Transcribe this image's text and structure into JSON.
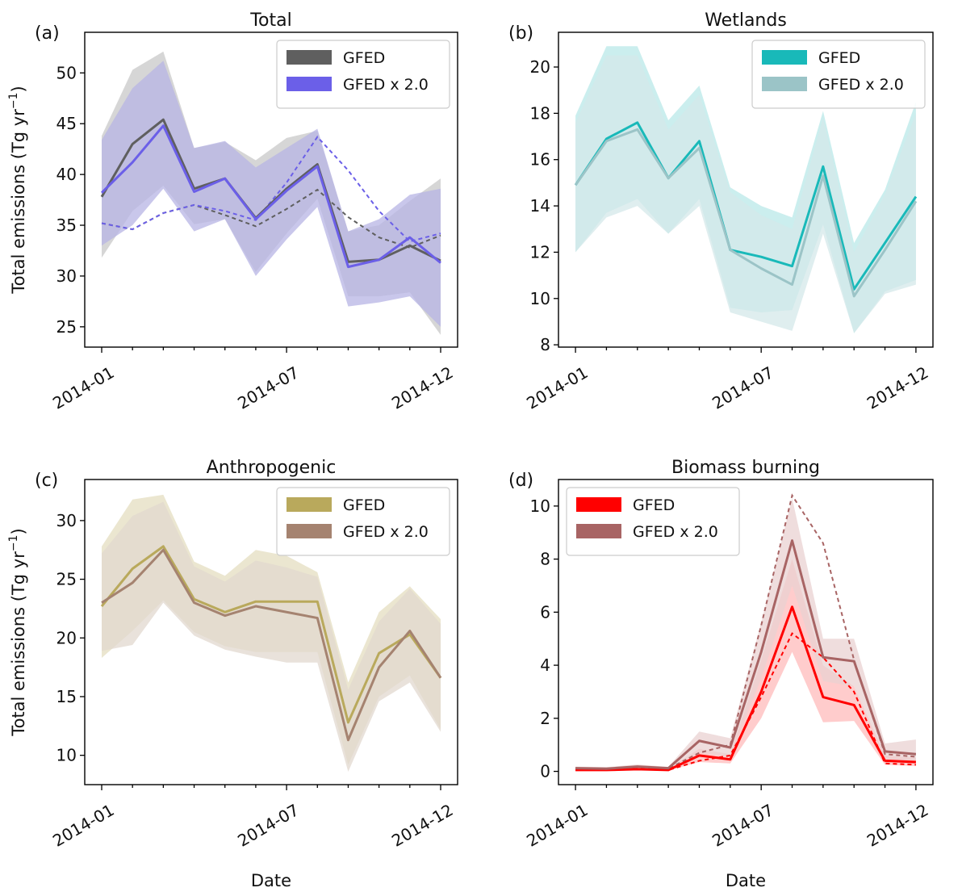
{
  "xlabel": "Date",
  "ylabel_prefix": "Total emissions (",
  "ylabel_unit": "Tg yr",
  "ylabel_exp": "−1",
  "ylabel_suffix": ")",
  "chart_data": [
    {
      "type": "line",
      "letter": "(a)",
      "title": "Total",
      "ylim": [
        23,
        54
      ],
      "yticks": [
        25,
        30,
        35,
        40,
        45,
        50
      ],
      "x_months": [
        "2014-01",
        "2014-02",
        "2014-03",
        "2014-04",
        "2014-05",
        "2014-06",
        "2014-07",
        "2014-08",
        "2014-09",
        "2014-10",
        "2014-11",
        "2014-12"
      ],
      "xtick_labels": [
        "2014-01",
        "2014-07",
        "2014-12"
      ],
      "legend_position": "upper right",
      "series": [
        {
          "name": "GFED",
          "color": "#5f5f5f",
          "values": [
            37.8,
            43.0,
            45.4,
            38.6,
            39.6,
            35.7,
            38.6,
            41.0,
            31.4,
            31.6,
            33.0,
            31.5
          ],
          "band_low": [
            31.8,
            36.4,
            38.9,
            35.1,
            35.6,
            30.4,
            34.2,
            37.6,
            28.0,
            28.0,
            28.4,
            24.2
          ],
          "band_high": [
            43.8,
            50.3,
            52.1,
            42.6,
            43.2,
            41.4,
            43.6,
            44.3,
            34.4,
            35.0,
            37.4,
            39.6
          ],
          "band_color": "#cfcfcf",
          "dashed": [
            35.2,
            34.6,
            36.2,
            37.0,
            36.0,
            34.9,
            36.6,
            38.5,
            35.8,
            33.8,
            32.8,
            34.0
          ]
        },
        {
          "name": "GFED x 2.0",
          "color": "#6b5fe8",
          "values": [
            38.2,
            41.2,
            44.8,
            38.3,
            39.6,
            35.6,
            38.4,
            40.8,
            30.9,
            31.6,
            33.8,
            31.3
          ],
          "band_low": [
            33.0,
            35.0,
            38.6,
            34.4,
            35.6,
            30.0,
            33.6,
            36.8,
            27.0,
            27.4,
            28.0,
            25.0
          ],
          "band_high": [
            43.4,
            48.5,
            51.2,
            42.6,
            43.3,
            40.7,
            42.6,
            44.5,
            34.4,
            35.6,
            38.0,
            38.6
          ],
          "band_color": "#b7b4e4",
          "dashed": [
            35.2,
            34.6,
            36.2,
            37.0,
            36.4,
            35.5,
            39.2,
            43.7,
            40.4,
            36.4,
            33.4,
            34.2
          ]
        }
      ]
    },
    {
      "type": "line",
      "letter": "(b)",
      "title": "Wetlands",
      "ylim": [
        7.9,
        21.5
      ],
      "yticks": [
        8,
        10,
        12,
        14,
        16,
        18,
        20
      ],
      "x_months": [
        "2014-01",
        "2014-02",
        "2014-03",
        "2014-04",
        "2014-05",
        "2014-06",
        "2014-07",
        "2014-08",
        "2014-09",
        "2014-10",
        "2014-11",
        "2014-12"
      ],
      "xtick_labels": [
        "2014-01",
        "2014-07",
        "2014-12"
      ],
      "legend_position": "upper right",
      "series": [
        {
          "name": "GFED",
          "color": "#19b9b9",
          "values": [
            14.9,
            16.9,
            17.6,
            15.2,
            16.8,
            12.1,
            11.8,
            11.4,
            15.7,
            10.4,
            12.4,
            14.4
          ],
          "band_low": [
            12.0,
            13.7,
            14.3,
            12.8,
            14.3,
            9.6,
            9.4,
            9.5,
            13.2,
            8.5,
            10.3,
            10.8
          ],
          "band_high": [
            17.9,
            20.9,
            20.9,
            17.7,
            19.2,
            14.8,
            14.0,
            13.5,
            18.1,
            12.4,
            14.7,
            18.5
          ],
          "band_color": "#c2ebeb",
          "dashed": null
        },
        {
          "name": "GFED x 2.0",
          "color": "#9bc4c7",
          "values": [
            14.9,
            16.8,
            17.3,
            15.2,
            16.5,
            12.1,
            11.3,
            10.6,
            15.3,
            10.1,
            12.1,
            14.2
          ],
          "band_low": [
            12.0,
            13.5,
            14.0,
            12.8,
            14.0,
            9.4,
            9.0,
            8.6,
            12.8,
            8.5,
            10.2,
            10.6
          ],
          "band_high": [
            17.6,
            20.5,
            20.5,
            17.3,
            18.8,
            14.6,
            13.6,
            13.0,
            17.8,
            12.0,
            14.5,
            18.0
          ],
          "band_color": "#d4e8ea",
          "dashed": null
        }
      ]
    },
    {
      "type": "line",
      "letter": "(c)",
      "title": "Anthropogenic",
      "ylim": [
        7.5,
        33.5
      ],
      "yticks": [
        10,
        15,
        20,
        25,
        30
      ],
      "x_months": [
        "2014-01",
        "2014-02",
        "2014-03",
        "2014-04",
        "2014-05",
        "2014-06",
        "2014-07",
        "2014-08",
        "2014-09",
        "2014-10",
        "2014-11",
        "2014-12"
      ],
      "xtick_labels": [
        "2014-01",
        "2014-07",
        "2014-12"
      ],
      "legend_position": "upper right",
      "series": [
        {
          "name": "GFED",
          "color": "#b9a95c",
          "values": [
            22.7,
            25.9,
            27.8,
            23.3,
            22.2,
            23.1,
            23.1,
            23.1,
            12.8,
            18.7,
            20.3,
            16.6
          ],
          "band_low": [
            18.3,
            20.6,
            23.2,
            20.5,
            19.3,
            18.8,
            18.8,
            18.8,
            9.2,
            15.0,
            16.8,
            12.2
          ],
          "band_high": [
            27.8,
            31.8,
            32.2,
            26.5,
            25.3,
            27.5,
            27.0,
            25.6,
            16.2,
            22.2,
            24.4,
            21.6
          ],
          "band_color": "#e8e2c8",
          "dashed": null
        },
        {
          "name": "GFED x 2.0",
          "color": "#a58370",
          "values": [
            23.0,
            24.7,
            27.5,
            23.0,
            21.9,
            22.7,
            22.2,
            21.7,
            11.3,
            17.5,
            20.6,
            16.6
          ],
          "band_low": [
            18.9,
            19.4,
            23.0,
            20.2,
            19.0,
            18.4,
            17.9,
            17.9,
            8.6,
            14.6,
            16.2,
            12.0
          ],
          "band_high": [
            27.2,
            30.4,
            31.6,
            26.1,
            24.8,
            26.6,
            26.0,
            25.2,
            15.6,
            21.4,
            24.2,
            21.2
          ],
          "band_color": "#e2d8cf",
          "dashed": null
        }
      ]
    },
    {
      "type": "line",
      "letter": "(d)",
      "title": "Biomass burning",
      "ylim": [
        -0.5,
        11.0
      ],
      "yticks": [
        0,
        2,
        4,
        6,
        8,
        10
      ],
      "x_months": [
        "2014-01",
        "2014-02",
        "2014-03",
        "2014-04",
        "2014-05",
        "2014-06",
        "2014-07",
        "2014-08",
        "2014-09",
        "2014-10",
        "2014-11",
        "2014-12"
      ],
      "xtick_labels": [
        "2014-01",
        "2014-07",
        "2014-12"
      ],
      "legend_position": "upper left",
      "series": [
        {
          "name": "GFED",
          "color": "#ff0000",
          "values": [
            0.05,
            0.05,
            0.08,
            0.05,
            0.6,
            0.45,
            3.0,
            6.2,
            2.8,
            2.5,
            0.4,
            0.35
          ],
          "band_low": [
            0.02,
            0.02,
            0.04,
            0.03,
            0.35,
            0.3,
            2.0,
            4.5,
            1.85,
            1.9,
            0.25,
            0.2
          ],
          "band_high": [
            0.1,
            0.1,
            0.14,
            0.1,
            0.85,
            0.65,
            4.2,
            8.0,
            4.0,
            3.2,
            0.6,
            0.5
          ],
          "band_color": "#ffc3c3",
          "dashed": [
            0.06,
            0.05,
            0.08,
            0.05,
            0.4,
            0.6,
            2.8,
            5.2,
            4.3,
            3.0,
            0.3,
            0.25
          ]
        },
        {
          "name": "GFED x 2.0",
          "color": "#a86464",
          "values": [
            0.12,
            0.1,
            0.18,
            0.12,
            1.15,
            0.9,
            4.5,
            8.7,
            4.3,
            4.15,
            0.75,
            0.65
          ],
          "band_low": [
            0.06,
            0.05,
            0.1,
            0.07,
            0.7,
            0.55,
            3.5,
            7.0,
            3.4,
            3.2,
            0.45,
            0.4
          ],
          "band_high": [
            0.18,
            0.16,
            0.26,
            0.17,
            1.5,
            1.25,
            5.6,
            10.3,
            5.0,
            5.0,
            1.05,
            1.2
          ],
          "band_color": "#ead2d2",
          "dashed": [
            0.12,
            0.1,
            0.16,
            0.1,
            0.7,
            1.0,
            5.5,
            10.4,
            8.6,
            4.2,
            0.65,
            0.55
          ]
        }
      ]
    }
  ]
}
